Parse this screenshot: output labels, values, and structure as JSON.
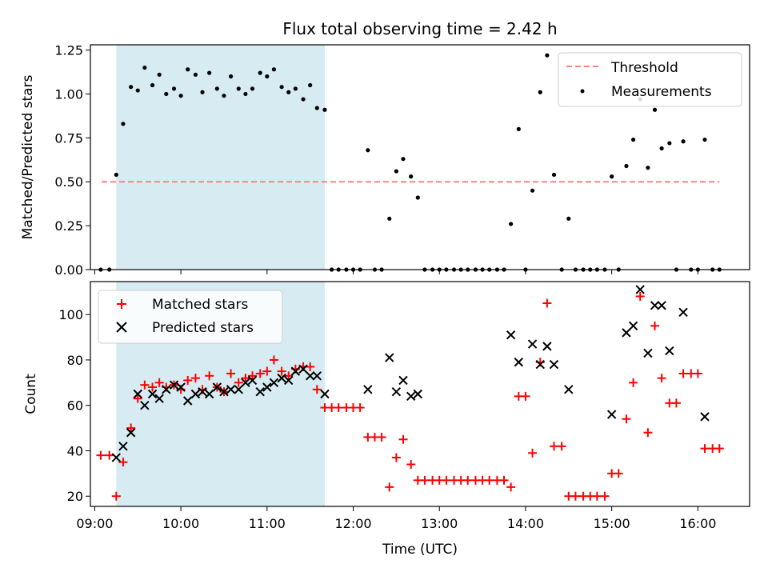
{
  "chart_data": [
    {
      "type": "scatter",
      "title": "Flux total observing time = 2.42 h",
      "ylabel": "Matched/Predicted stars",
      "xlabel": "",
      "xlim": [
        8.95,
        16.6
      ],
      "ylim": [
        0.0,
        1.28
      ],
      "yticks": [
        0.0,
        0.25,
        0.5,
        0.75,
        1.0,
        1.25
      ],
      "ytick_labels": [
        "0.00",
        "0.25",
        "0.50",
        "0.75",
        "1.00",
        "1.25"
      ],
      "legend_position": "upper right",
      "shaded_interval": {
        "x0": 9.25,
        "x1": 11.67,
        "color": "#add8e6"
      },
      "threshold": {
        "name": "Threshold",
        "y": 0.5,
        "x0": 9.08,
        "x1": 16.25,
        "color": "#ff8080",
        "style": "dashed"
      },
      "series": [
        {
          "name": "Measurements",
          "color": "#000000",
          "marker": "dot",
          "x": [
            9.07,
            9.17,
            9.25,
            9.33,
            9.42,
            9.5,
            9.58,
            9.67,
            9.75,
            9.83,
            9.92,
            10.0,
            10.08,
            10.17,
            10.25,
            10.33,
            10.42,
            10.5,
            10.58,
            10.67,
            10.75,
            10.83,
            10.92,
            11.0,
            11.08,
            11.17,
            11.25,
            11.33,
            11.42,
            11.5,
            11.58,
            11.67,
            11.75,
            11.83,
            11.92,
            12.0,
            12.08,
            12.17,
            12.25,
            12.33,
            12.42,
            12.5,
            12.58,
            12.67,
            12.75,
            12.83,
            12.92,
            13.0,
            13.08,
            13.17,
            13.25,
            13.33,
            13.42,
            13.5,
            13.58,
            13.67,
            13.75,
            13.83,
            13.92,
            14.0,
            14.08,
            14.17,
            14.25,
            14.33,
            14.42,
            14.5,
            14.58,
            14.67,
            14.75,
            14.83,
            14.92,
            15.0,
            15.08,
            15.17,
            15.25,
            15.33,
            15.42,
            15.5,
            15.58,
            15.67,
            15.75,
            15.83,
            15.92,
            16.0,
            16.08,
            16.17,
            16.25
          ],
          "y": [
            0.0,
            0.0,
            0.54,
            0.83,
            1.04,
            1.02,
            1.15,
            1.05,
            1.11,
            1.0,
            1.03,
            0.99,
            1.14,
            1.11,
            1.01,
            1.12,
            1.03,
            0.99,
            1.1,
            1.03,
            1.0,
            1.03,
            1.12,
            1.1,
            1.14,
            1.04,
            1.01,
            1.03,
            0.97,
            1.05,
            0.92,
            0.91,
            0.0,
            0.0,
            0.0,
            0.0,
            0.0,
            0.68,
            0.0,
            0.0,
            0.29,
            0.56,
            0.63,
            0.53,
            0.41,
            0.0,
            0.0,
            0.0,
            0.0,
            0.0,
            0.0,
            0.0,
            0.0,
            0.0,
            0.0,
            0.0,
            0.0,
            0.26,
            0.8,
            0.0,
            0.45,
            1.01,
            1.22,
            0.54,
            0.0,
            0.29,
            0.0,
            0.0,
            0.0,
            0.0,
            0.0,
            0.53,
            0.0,
            0.59,
            0.74,
            0.97,
            0.58,
            0.91,
            0.69,
            0.72,
            0.0,
            0.73,
            0.0,
            0.0,
            0.74,
            0.0,
            0.0
          ]
        }
      ]
    },
    {
      "type": "scatter",
      "title": "",
      "ylabel": "Count",
      "xlabel": "Time (UTC)",
      "xlim": [
        8.95,
        16.6
      ],
      "ylim": [
        15.5,
        114.5
      ],
      "xticks": [
        9,
        10,
        11,
        12,
        13,
        14,
        15,
        16
      ],
      "xtick_labels": [
        "09:00",
        "10:00",
        "11:00",
        "12:00",
        "13:00",
        "14:00",
        "15:00",
        "16:00"
      ],
      "yticks": [
        20,
        40,
        60,
        80,
        100
      ],
      "ytick_labels": [
        "20",
        "40",
        "60",
        "80",
        "100"
      ],
      "legend_position": "upper left",
      "shaded_interval": {
        "x0": 9.25,
        "x1": 11.67,
        "color": "#add8e6"
      },
      "series": [
        {
          "name": "Matched stars",
          "color": "#ff0000",
          "marker": "plus",
          "x": [
            9.07,
            9.17,
            9.25,
            9.33,
            9.42,
            9.5,
            9.58,
            9.67,
            9.75,
            9.83,
            9.92,
            10.0,
            10.08,
            10.17,
            10.25,
            10.33,
            10.42,
            10.5,
            10.58,
            10.67,
            10.75,
            10.83,
            10.92,
            11.0,
            11.08,
            11.17,
            11.25,
            11.33,
            11.42,
            11.5,
            11.58,
            11.67,
            11.75,
            11.83,
            11.92,
            12.0,
            12.08,
            12.17,
            12.25,
            12.33,
            12.42,
            12.5,
            12.58,
            12.67,
            12.75,
            12.83,
            12.92,
            13.0,
            13.08,
            13.17,
            13.25,
            13.33,
            13.42,
            13.5,
            13.58,
            13.67,
            13.75,
            13.83,
            13.92,
            14.0,
            14.08,
            14.17,
            14.25,
            14.33,
            14.42,
            14.5,
            14.58,
            14.67,
            14.75,
            14.83,
            14.92,
            15.0,
            15.08,
            15.17,
            15.25,
            15.33,
            15.42,
            15.5,
            15.58,
            15.67,
            15.75,
            15.83,
            15.92,
            16.0,
            16.08,
            16.17,
            16.25
          ],
          "y": [
            38,
            38,
            20,
            35,
            50,
            63,
            69,
            68,
            70,
            68,
            69,
            67,
            71,
            72,
            67,
            73,
            68,
            66,
            74,
            70,
            72,
            73,
            74,
            75,
            80,
            75,
            73,
            76,
            77,
            77,
            67,
            59,
            59,
            59,
            59,
            59,
            59,
            46,
            46,
            46,
            24,
            37,
            45,
            34,
            27,
            27,
            27,
            27,
            27,
            27,
            27,
            27,
            27,
            27,
            27,
            27,
            27,
            24,
            64,
            64,
            39,
            79,
            105,
            42,
            42,
            20,
            20,
            20,
            20,
            20,
            20,
            30,
            30,
            54,
            70,
            108,
            48,
            95,
            72,
            61,
            61,
            74,
            74,
            74,
            41,
            41,
            41
          ]
        },
        {
          "name": "Predicted stars",
          "color": "#000000",
          "marker": "x",
          "x": [
            9.25,
            9.33,
            9.42,
            9.5,
            9.58,
            9.67,
            9.75,
            9.83,
            9.92,
            10.0,
            10.08,
            10.17,
            10.25,
            10.33,
            10.42,
            10.5,
            10.58,
            10.67,
            10.75,
            10.83,
            10.92,
            11.0,
            11.08,
            11.17,
            11.25,
            11.33,
            11.42,
            11.5,
            11.58,
            11.67,
            12.17,
            12.42,
            12.5,
            12.58,
            12.67,
            12.75,
            13.83,
            13.92,
            14.08,
            14.17,
            14.25,
            14.33,
            14.5,
            15.0,
            15.17,
            15.25,
            15.33,
            15.42,
            15.5,
            15.58,
            15.67,
            15.83,
            16.08
          ],
          "y": [
            37,
            42,
            48,
            65,
            60,
            65,
            63,
            67,
            69,
            68,
            62,
            65,
            66,
            65,
            68,
            66,
            67,
            67,
            70,
            71,
            66,
            68,
            70,
            72,
            71,
            75,
            76,
            73,
            73,
            65,
            67,
            81,
            66,
            71,
            64,
            65,
            91,
            79,
            87,
            78,
            86,
            78,
            67,
            56,
            92,
            95,
            111,
            83,
            104,
            104,
            84,
            101,
            55
          ]
        }
      ]
    }
  ]
}
